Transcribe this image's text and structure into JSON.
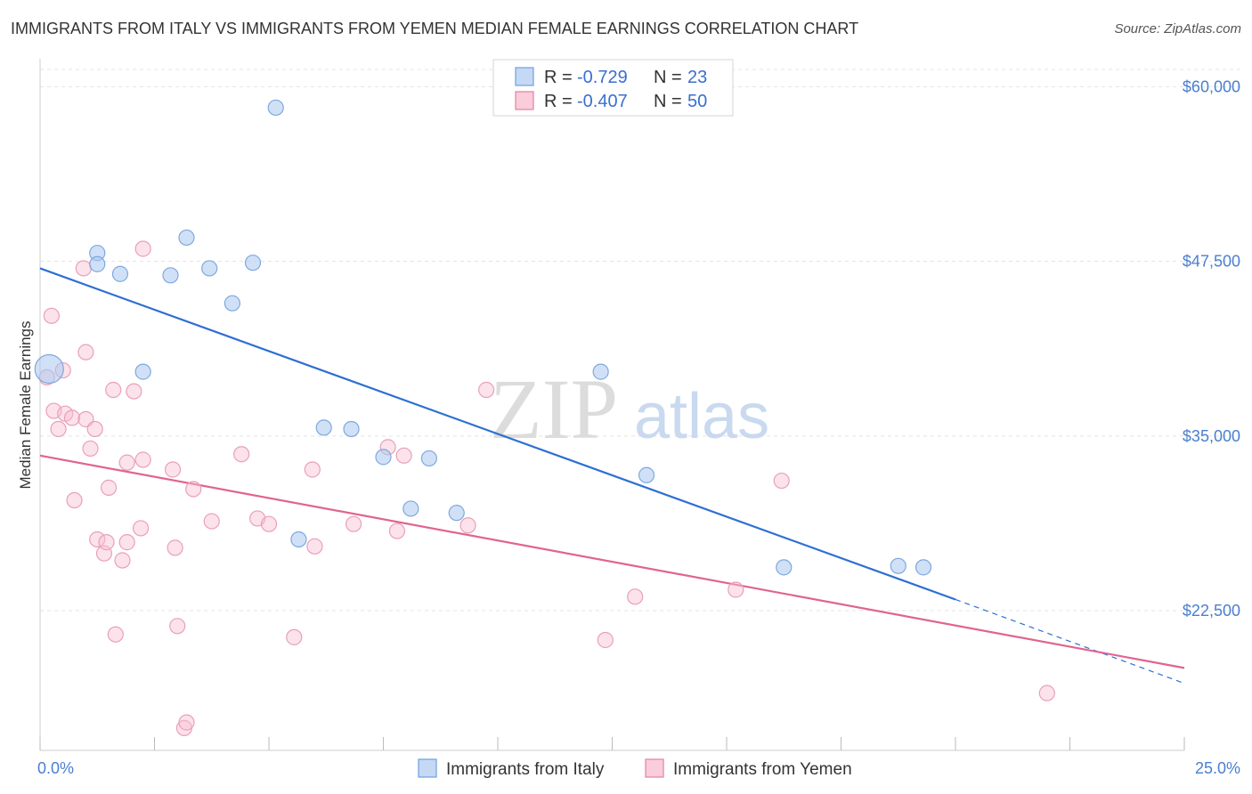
{
  "header": {
    "title": "IMMIGRANTS FROM ITALY VS IMMIGRANTS FROM YEMEN MEDIAN FEMALE EARNINGS CORRELATION CHART",
    "source": "Source: ZipAtlas.com"
  },
  "watermark": {
    "zip": "ZIP",
    "atlas": "atlas"
  },
  "legend_box": {
    "rows": [
      {
        "r_label": "R =",
        "r_value": "-0.729",
        "n_label": "N =",
        "n_value": "23",
        "color": "#6fa0e0"
      },
      {
        "r_label": "R =",
        "r_value": "-0.407",
        "n_label": "N =",
        "n_value": "50",
        "color": "#e77fa3"
      }
    ]
  },
  "bottom_legend": [
    {
      "label": "Immigrants from Italy",
      "color": "#6fa0e0"
    },
    {
      "label": "Immigrants from Yemen",
      "color": "#e77fa3"
    }
  ],
  "chart_data": {
    "type": "scatter",
    "title": "IMMIGRANTS FROM ITALY VS IMMIGRANTS FROM YEMEN MEDIAN FEMALE EARNINGS CORRELATION CHART",
    "xlabel": "",
    "ylabel": "Median Female Earnings",
    "xlim": [
      0,
      25
    ],
    "ylim": [
      12500,
      62000
    ],
    "x_tick_labels": [
      "0.0%",
      "25.0%"
    ],
    "y_ticks": [
      22500,
      35000,
      47500,
      60000
    ],
    "y_tick_labels": [
      "$22,500",
      "$35,000",
      "$47,500",
      "$60,000"
    ],
    "grid": "horizontal dashed",
    "legend_position": "top-center and bottom",
    "series": [
      {
        "name": "Immigrants from Italy",
        "color": "#6fa0e0",
        "points": [
          [
            0.2,
            39800
          ],
          [
            1.25,
            48100
          ],
          [
            1.25,
            47300
          ],
          [
            1.75,
            46600
          ],
          [
            2.25,
            39600
          ],
          [
            2.85,
            46500
          ],
          [
            3.2,
            49200
          ],
          [
            3.7,
            47000
          ],
          [
            4.2,
            44500
          ],
          [
            4.65,
            47400
          ],
          [
            5.15,
            58500
          ],
          [
            5.65,
            27600
          ],
          [
            6.2,
            35600
          ],
          [
            6.8,
            35500
          ],
          [
            7.5,
            33500
          ],
          [
            8.1,
            29800
          ],
          [
            8.5,
            33400
          ],
          [
            9.1,
            29500
          ],
          [
            12.25,
            39600
          ],
          [
            13.25,
            32200
          ],
          [
            16.25,
            25600
          ],
          [
            18.75,
            25700
          ],
          [
            19.3,
            25600
          ]
        ],
        "trend": {
          "x0": 0.0,
          "y0": 47000,
          "x1": 20.0,
          "y1": 23300,
          "dashed_to_x": 25.0,
          "dashed_to_y": 17300
        }
      },
      {
        "name": "Immigrants from Yemen",
        "color": "#e77fa3",
        "points": [
          [
            0.15,
            39200
          ],
          [
            0.25,
            43600
          ],
          [
            0.3,
            36800
          ],
          [
            0.55,
            36600
          ],
          [
            0.4,
            35500
          ],
          [
            0.5,
            39700
          ],
          [
            0.7,
            36300
          ],
          [
            0.75,
            30400
          ],
          [
            0.95,
            47000
          ],
          [
            1.0,
            36200
          ],
          [
            1.1,
            34100
          ],
          [
            1.0,
            41000
          ],
          [
            1.2,
            35500
          ],
          [
            1.25,
            27600
          ],
          [
            1.4,
            26600
          ],
          [
            1.45,
            27400
          ],
          [
            1.5,
            31300
          ],
          [
            1.6,
            38300
          ],
          [
            1.65,
            20800
          ],
          [
            1.8,
            26100
          ],
          [
            1.9,
            33100
          ],
          [
            1.9,
            27400
          ],
          [
            2.05,
            38200
          ],
          [
            2.2,
            28400
          ],
          [
            2.25,
            33300
          ],
          [
            2.25,
            48400
          ],
          [
            2.9,
            32600
          ],
          [
            2.95,
            27000
          ],
          [
            3.0,
            21400
          ],
          [
            3.15,
            14100
          ],
          [
            3.2,
            14500
          ],
          [
            3.35,
            31200
          ],
          [
            3.75,
            28900
          ],
          [
            4.4,
            33700
          ],
          [
            4.75,
            29100
          ],
          [
            5.0,
            28700
          ],
          [
            5.55,
            20600
          ],
          [
            5.95,
            32600
          ],
          [
            6.0,
            27100
          ],
          [
            6.85,
            28700
          ],
          [
            7.6,
            34200
          ],
          [
            7.8,
            28200
          ],
          [
            7.95,
            33600
          ],
          [
            9.35,
            28600
          ],
          [
            9.75,
            38300
          ],
          [
            12.35,
            20400
          ],
          [
            13.0,
            23500
          ],
          [
            15.2,
            24000
          ],
          [
            16.2,
            31800
          ],
          [
            22.0,
            16600
          ]
        ],
        "trend": {
          "x0": 0.0,
          "y0": 33600,
          "x1": 25.0,
          "y1": 18400
        }
      }
    ]
  }
}
